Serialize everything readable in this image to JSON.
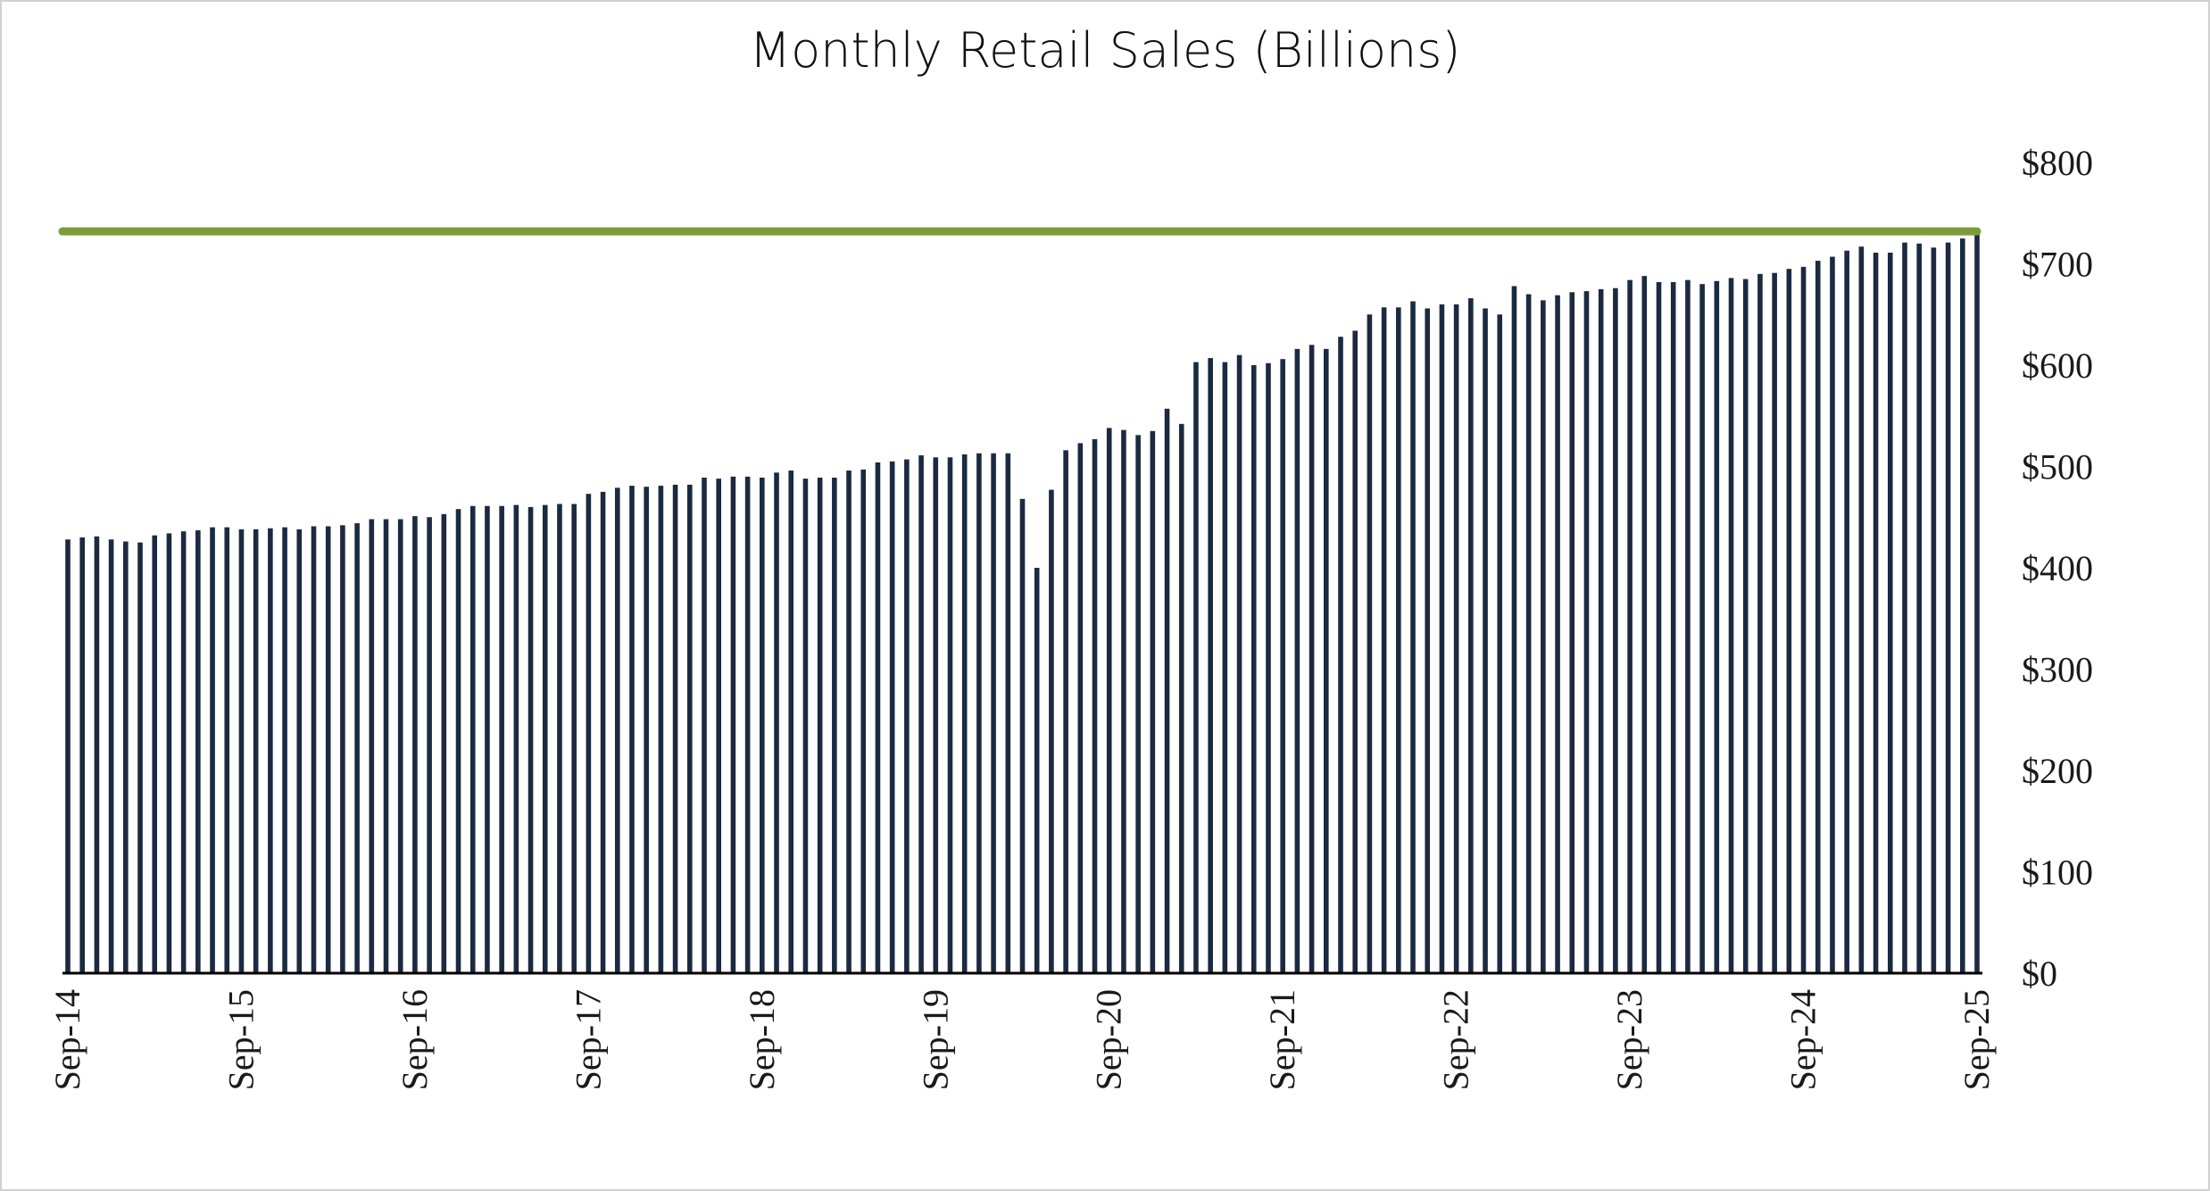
{
  "chart_data": {
    "type": "bar",
    "title": "Monthly Retail Sales (Billions)",
    "categories": [
      "Sep-14",
      null,
      null,
      null,
      null,
      null,
      null,
      null,
      null,
      null,
      null,
      null,
      "Sep-15",
      null,
      null,
      null,
      null,
      null,
      null,
      null,
      null,
      null,
      null,
      null,
      "Sep-16",
      null,
      null,
      null,
      null,
      null,
      null,
      null,
      null,
      null,
      null,
      null,
      "Sep-17",
      null,
      null,
      null,
      null,
      null,
      null,
      null,
      null,
      null,
      null,
      null,
      "Sep-18",
      null,
      null,
      null,
      null,
      null,
      null,
      null,
      null,
      null,
      null,
      null,
      "Sep-19",
      null,
      null,
      null,
      null,
      null,
      null,
      null,
      null,
      null,
      null,
      null,
      "Sep-20",
      null,
      null,
      null,
      null,
      null,
      null,
      null,
      null,
      null,
      null,
      null,
      "Sep-21",
      null,
      null,
      null,
      null,
      null,
      null,
      null,
      null,
      null,
      null,
      null,
      "Sep-22",
      null,
      null,
      null,
      null,
      null,
      null,
      null,
      null,
      null,
      null,
      null,
      "Sep-23",
      null,
      null,
      null,
      null,
      null,
      null,
      null,
      null,
      null,
      null,
      null,
      "Sep-24",
      null,
      null,
      null,
      null,
      null,
      null,
      null,
      null,
      null,
      null,
      null,
      "Sep-25"
    ],
    "values": [
      428,
      430,
      431,
      428,
      426,
      425,
      432,
      434,
      436,
      437,
      440,
      440,
      438,
      438,
      439,
      440,
      438,
      441,
      441,
      442,
      444,
      448,
      448,
      448,
      451,
      450,
      453,
      458,
      461,
      461,
      461,
      462,
      460,
      462,
      463,
      463,
      473,
      475,
      479,
      481,
      480,
      481,
      482,
      482,
      489,
      488,
      490,
      490,
      489,
      494,
      496,
      488,
      489,
      489,
      496,
      497,
      504,
      505,
      507,
      511,
      509,
      509,
      512,
      513,
      513,
      513,
      468,
      400,
      477,
      516,
      523,
      527,
      538,
      536,
      531,
      535,
      557,
      542,
      603,
      607,
      603,
      610,
      600,
      602,
      606,
      616,
      620,
      616,
      628,
      634,
      650,
      657,
      657,
      663,
      656,
      660,
      660,
      666,
      656,
      650,
      678,
      670,
      664,
      669,
      672,
      673,
      675,
      676,
      684,
      688,
      682,
      682,
      684,
      680,
      683,
      686,
      685,
      690,
      691,
      695,
      697,
      703,
      707,
      713,
      717,
      711,
      711,
      721,
      720,
      716,
      721,
      725,
      732
    ],
    "color": "#1b2a40",
    "reference_line": {
      "value": 732,
      "color": "#7c9c3c"
    },
    "ylim": [
      0,
      800
    ],
    "yticks": [
      {
        "value": 0,
        "label": "$0"
      },
      {
        "value": 100,
        "label": "$100"
      },
      {
        "value": 200,
        "label": "$200"
      },
      {
        "value": 300,
        "label": "$300"
      },
      {
        "value": 400,
        "label": "$400"
      },
      {
        "value": 500,
        "label": "$500"
      },
      {
        "value": 600,
        "label": "$600"
      },
      {
        "value": 700,
        "label": "$700"
      },
      {
        "value": 800,
        "label": "$800"
      }
    ],
    "y_axis_side": "right",
    "grid": false
  }
}
